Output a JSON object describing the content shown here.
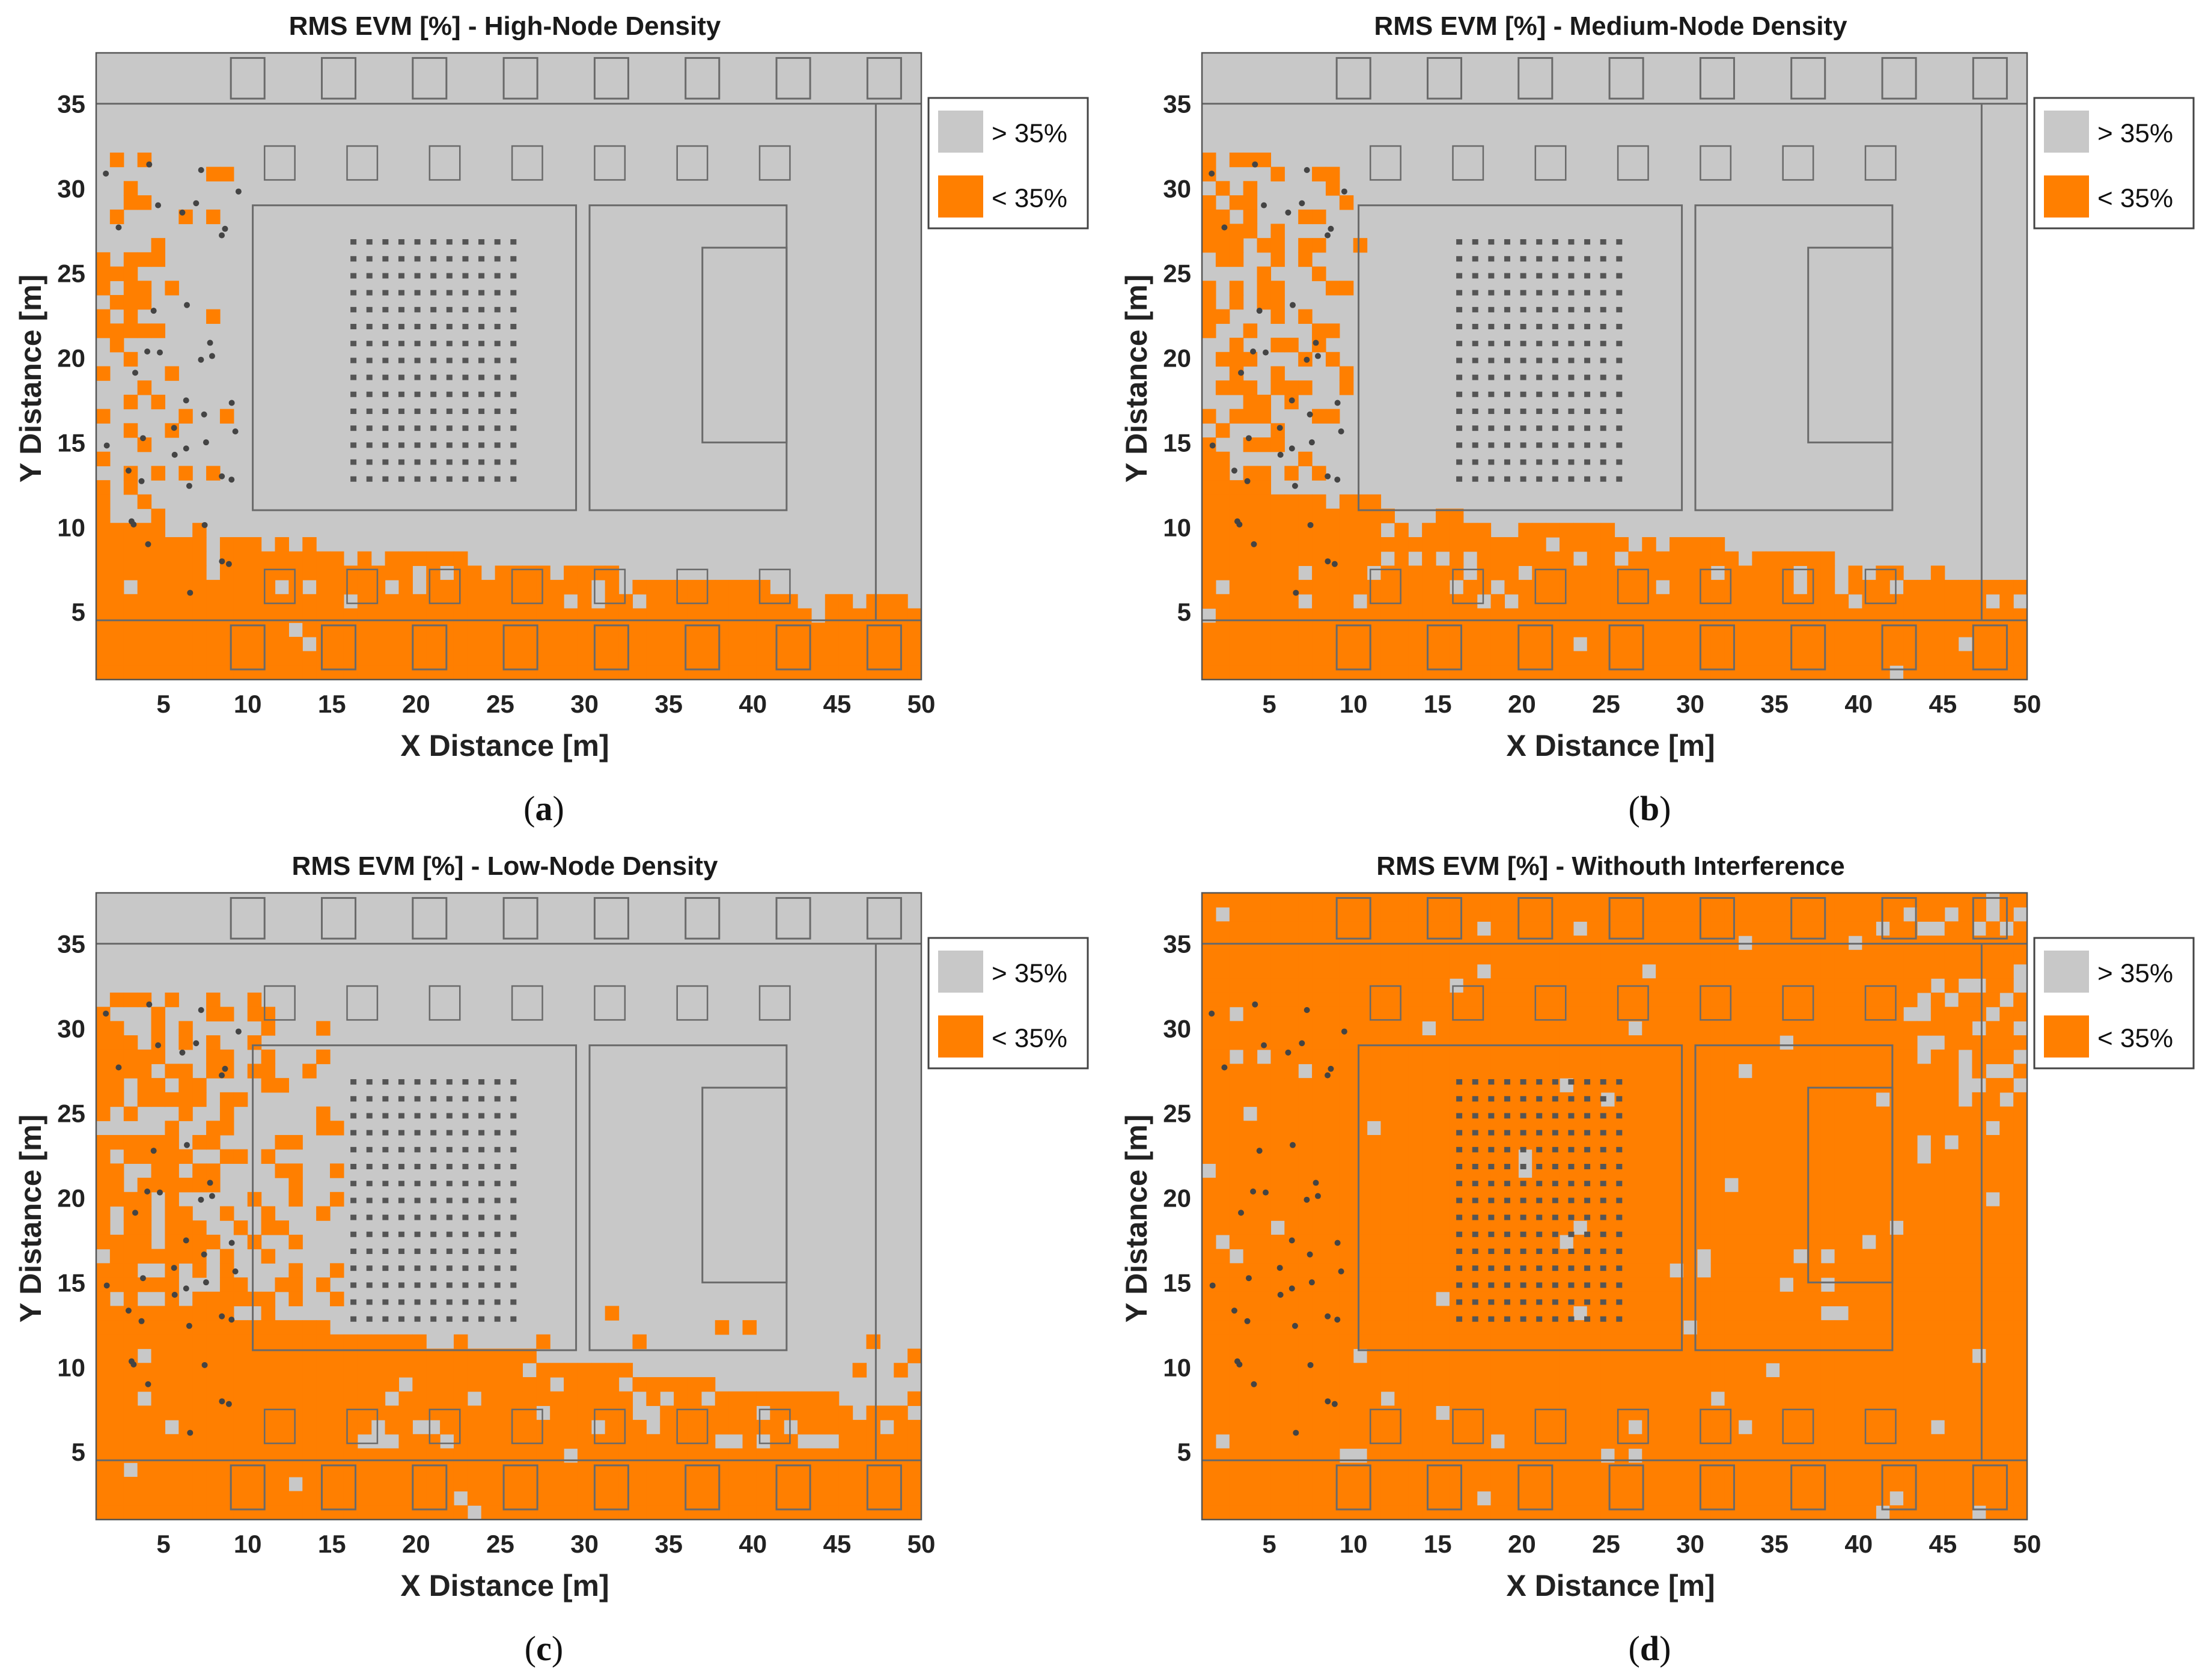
{
  "chart_data": [
    {
      "type": "heatmap",
      "title": "RMS EVM [%] - High-Node Density",
      "xlabel": "X Distance [m]",
      "ylabel": "Y Distance [m]",
      "xlim": [
        1,
        50
      ],
      "ylim": [
        1,
        38
      ],
      "xticks": [
        5,
        10,
        15,
        20,
        25,
        30,
        35,
        40,
        45,
        50
      ],
      "yticks": [
        5,
        10,
        15,
        20,
        25,
        30,
        35
      ],
      "legend": [
        {
          "label": "> 35%",
          "color": "#c8c8c8"
        },
        {
          "label": "< 35%",
          "color": "#ff7f00"
        }
      ],
      "legend_position": "top-right outside",
      "caption": "a",
      "coverage_seed": 11,
      "coverage_band": [
        0.23,
        0.12,
        0.06,
        0.0
      ]
    },
    {
      "type": "heatmap",
      "title": "RMS EVM [%] - Medium-Node Density",
      "xlabel": "X Distance [m]",
      "ylabel": "Y Distance [m]",
      "xlim": [
        1,
        50
      ],
      "ylim": [
        1,
        38
      ],
      "xticks": [
        5,
        10,
        15,
        20,
        25,
        30,
        35,
        40,
        45,
        50
      ],
      "yticks": [
        5,
        10,
        15,
        20,
        25,
        30,
        35
      ],
      "legend": [
        {
          "label": "> 35%",
          "color": "#c8c8c8"
        },
        {
          "label": "< 35%",
          "color": "#ff7f00"
        }
      ],
      "legend_position": "top-right outside",
      "caption": "b",
      "coverage_seed": 23,
      "coverage_band": [
        0.3,
        0.18,
        0.1,
        0.0
      ]
    },
    {
      "type": "heatmap",
      "title": "RMS EVM [%] - Low-Node Density",
      "xlabel": "X Distance [m]",
      "ylabel": "Y Distance [m]",
      "xlim": [
        1,
        50
      ],
      "ylim": [
        1,
        38
      ],
      "xticks": [
        5,
        10,
        15,
        20,
        25,
        30,
        35,
        40,
        45,
        50
      ],
      "yticks": [
        5,
        10,
        15,
        20,
        25,
        30,
        35
      ],
      "legend": [
        {
          "label": "> 35%",
          "color": "#c8c8c8"
        },
        {
          "label": "< 35%",
          "color": "#ff7f00"
        }
      ],
      "legend_position": "top-right outside",
      "caption": "c",
      "coverage_seed": 37,
      "coverage_band": [
        0.34,
        0.26,
        0.2,
        0.05
      ]
    },
    {
      "type": "heatmap",
      "title": "RMS EVM [%] - Withouth Interference",
      "xlabel": "X Distance [m]",
      "ylabel": "Y Distance [m]",
      "xlim": [
        1,
        50
      ],
      "ylim": [
        1,
        38
      ],
      "xticks": [
        5,
        10,
        15,
        20,
        25,
        30,
        35,
        40,
        45,
        50
      ],
      "yticks": [
        5,
        10,
        15,
        20,
        25,
        30,
        35
      ],
      "legend": [
        {
          "label": "> 35%",
          "color": "#c8c8c8"
        },
        {
          "label": "< 35%",
          "color": "#ff7f00"
        }
      ],
      "legend_position": "top-right outside",
      "caption": "d",
      "coverage_seed": 53,
      "coverage_band": [
        1.0,
        1.0,
        1.0,
        1.0
      ]
    }
  ]
}
